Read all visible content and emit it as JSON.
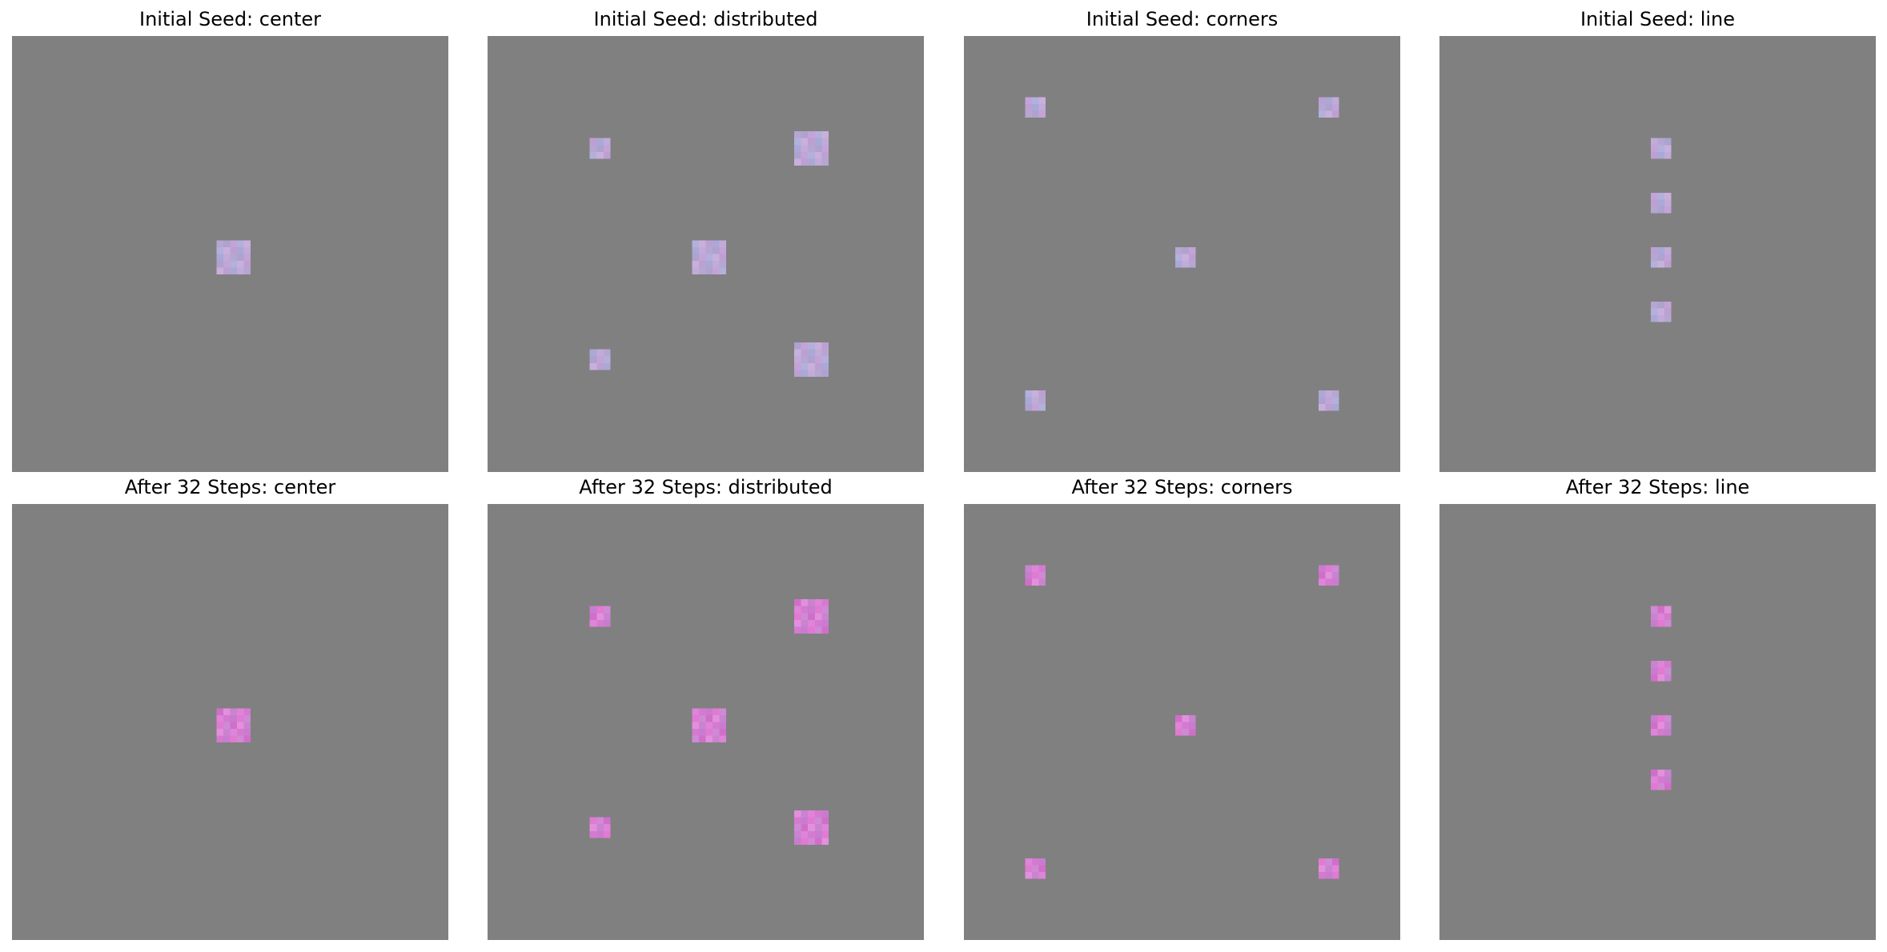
{
  "figure": {
    "background_color": "#ffffff",
    "grid_background_color": "#808080"
  },
  "chart_data": [
    {
      "type": "heatmap",
      "title": "Initial Seed: center",
      "grid_size": [
        64,
        64
      ],
      "seeds": [
        [
          32,
          32,
          5
        ]
      ],
      "stage": "initial"
    },
    {
      "type": "heatmap",
      "title": "Initial Seed: distributed",
      "grid_size": [
        64,
        64
      ],
      "seeds": [
        [
          16,
          16,
          3
        ],
        [
          16,
          47,
          5
        ],
        [
          32,
          32,
          5
        ],
        [
          47,
          16,
          3
        ],
        [
          47,
          47,
          5
        ]
      ],
      "stage": "initial"
    },
    {
      "type": "heatmap",
      "title": "Initial Seed: corners",
      "grid_size": [
        64,
        64
      ],
      "seeds": [
        [
          10,
          10,
          3
        ],
        [
          10,
          53,
          3
        ],
        [
          32,
          32,
          3
        ],
        [
          53,
          10,
          3
        ],
        [
          53,
          53,
          3
        ]
      ],
      "stage": "initial"
    },
    {
      "type": "heatmap",
      "title": "Initial Seed: line",
      "grid_size": [
        64,
        64
      ],
      "seeds": [
        [
          16,
          32,
          3
        ],
        [
          24,
          32,
          3
        ],
        [
          32,
          32,
          3
        ],
        [
          40,
          32,
          3
        ]
      ],
      "stage": "initial"
    },
    {
      "type": "heatmap",
      "title": "After 32 Steps: center",
      "grid_size": [
        64,
        64
      ],
      "seeds": [
        [
          32,
          32,
          5
        ]
      ],
      "stage": "after"
    },
    {
      "type": "heatmap",
      "title": "After 32 Steps: distributed",
      "grid_size": [
        64,
        64
      ],
      "seeds": [
        [
          16,
          16,
          3
        ],
        [
          16,
          47,
          5
        ],
        [
          32,
          32,
          5
        ],
        [
          47,
          16,
          3
        ],
        [
          47,
          47,
          5
        ]
      ],
      "stage": "after"
    },
    {
      "type": "heatmap",
      "title": "After 32 Steps: corners",
      "grid_size": [
        64,
        64
      ],
      "seeds": [
        [
          10,
          10,
          3
        ],
        [
          10,
          53,
          3
        ],
        [
          32,
          32,
          3
        ],
        [
          53,
          10,
          3
        ],
        [
          53,
          53,
          3
        ]
      ],
      "stage": "after"
    },
    {
      "type": "heatmap",
      "title": "After 32 Steps: line",
      "grid_size": [
        64,
        64
      ],
      "seeds": [
        [
          16,
          32,
          3
        ],
        [
          24,
          32,
          3
        ],
        [
          32,
          32,
          3
        ],
        [
          40,
          32,
          3
        ]
      ],
      "stage": "after"
    }
  ],
  "palettes": {
    "initial": [
      "#b6a6d2",
      "#c1abd8",
      "#aaa8d6",
      "#bca0d2",
      "#c9b0dc",
      "#b3b0dc",
      "#c3a3d8",
      "#aea2cf"
    ],
    "after": [
      "#d47ad0",
      "#df84d8",
      "#c983cf",
      "#e290dc",
      "#d06fc9",
      "#cf8ad4",
      "#e07ad2",
      "#c97ccf"
    ]
  }
}
